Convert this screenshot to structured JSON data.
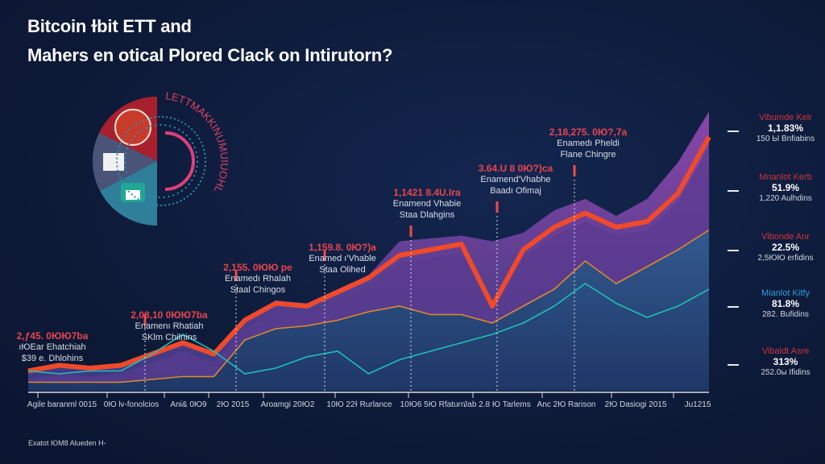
{
  "title_line1": "Bitcoin ɫbit ETT and",
  "title_line2": "Mahers en otical Plored Clack on Intirutorn?",
  "colors": {
    "background": "#0d1a38",
    "red": "#f04a2a",
    "purple": "#7a3f9a",
    "orange": "#e0892a",
    "teal": "#1fc0b8",
    "legend_red": "#d0343e",
    "legend_blue": "#2a9fd6"
  },
  "chart_data": {
    "type": "area",
    "title": "Bitcoin ɫbit ETT and Mahers en otical Plored Clack on Intirutorn?",
    "xlabel": "",
    "ylabel": "",
    "grid": false,
    "legend_placement": "right",
    "x_tick_labels": [
      "Agile baranml 0015",
      "0Ю lv-fonolcios",
      "Ani& 0Ю9",
      "2Ю 2015",
      "Aroamgi 20Ю2",
      "10Ю 22ɫ Rurlance",
      "10Ю6 5Ю Rfaturn",
      "Jab 2.8 Ю Tarlems",
      "Anc 2Ю Rarison",
      "2Ю Dasiogi 2015",
      "Ju1215"
    ],
    "series": [
      {
        "color": "#7a3f9a",
        "values": [
          7,
          9,
          8,
          9,
          13,
          17,
          13,
          26,
          32,
          31,
          36,
          41,
          53,
          54,
          55,
          53,
          56,
          64,
          68,
          62,
          68,
          81,
          99
        ]
      },
      {
        "color": "#f04a2a",
        "values": [
          7,
          9,
          8,
          9,
          13,
          17,
          13,
          25,
          31,
          30,
          35,
          40,
          48,
          50,
          52,
          30,
          50,
          58,
          63,
          58,
          60,
          70,
          90
        ]
      },
      {
        "color": "#e0892a",
        "values": [
          3,
          3,
          3,
          3,
          4,
          5,
          5,
          18,
          22,
          23,
          25,
          28,
          30,
          27,
          27,
          24,
          30,
          36,
          46,
          38,
          44,
          50,
          57
        ]
      },
      {
        "color": "#1fc0b8",
        "values": [
          7,
          6,
          7,
          7,
          13,
          20,
          14,
          6,
          8,
          12,
          14,
          6,
          11,
          14,
          17,
          20,
          24,
          30,
          38,
          31,
          26,
          30,
          36
        ]
      }
    ],
    "annotations": [
      {
        "value": "2,ƒ45. 0ЮЮ7ba",
        "line1": "ıЮEar Ehatchiah",
        "line2": "$39 e. Dhlohins"
      },
      {
        "value": "2,08,10 0ЮЮ7ba",
        "line1": "Enamenı Rhatiah",
        "line2": "SKlm Chilnins"
      },
      {
        "value": "2,155. 0ЮЮ pe",
        "line1": "Enamedı Rhalah",
        "line2": "Staal Chingos"
      },
      {
        "value": "1,159.8. 0Ю?)a",
        "line1": "Enamed ı'Vhable",
        "line2": "Staa Olihed"
      },
      {
        "value": "1,1421 8.4U.Ira",
        "line1": "Enamend Vhabie",
        "line2": "Staa Dlahgins"
      },
      {
        "value": "3.64.U 8 0Ю?)ca",
        "line1": "Enamend'Vhabhe",
        "line2": "Baadı Ofimaj"
      },
      {
        "value": "2,18,275. 0Ю?,7a",
        "line1": "Enamedı Pheldi",
        "line2": "Flane Chingre"
      }
    ]
  },
  "legend": [
    {
      "name": "Vibumde Kelr",
      "pct": "1,1.83%",
      "sub": "150 Ы Bnfiabins",
      "color": "#d0343e"
    },
    {
      "name": "Mnanlot Kerb",
      "pct": "51.9%",
      "sub": "1,220 Aulhdins",
      "color": "#d0343e"
    },
    {
      "name": "Vibonde Anr",
      "pct": "22.5%",
      "sub": "2,5ЮЮ erfidins",
      "color": "#d0343e"
    },
    {
      "name": "Mianlot Kitfy",
      "pct": "81.8%",
      "sub": "282. Bufidins",
      "color": "#2a9fd6"
    },
    {
      "name": "Vibaldt Asre",
      "pct": "313%",
      "sub": "252.0ы Ifidins",
      "color": "#d0343e"
    }
  ],
  "emblem_text": "LETTMAKKINUMUIUOHL",
  "footer": "Exatot ЮM8 Alueden H-"
}
